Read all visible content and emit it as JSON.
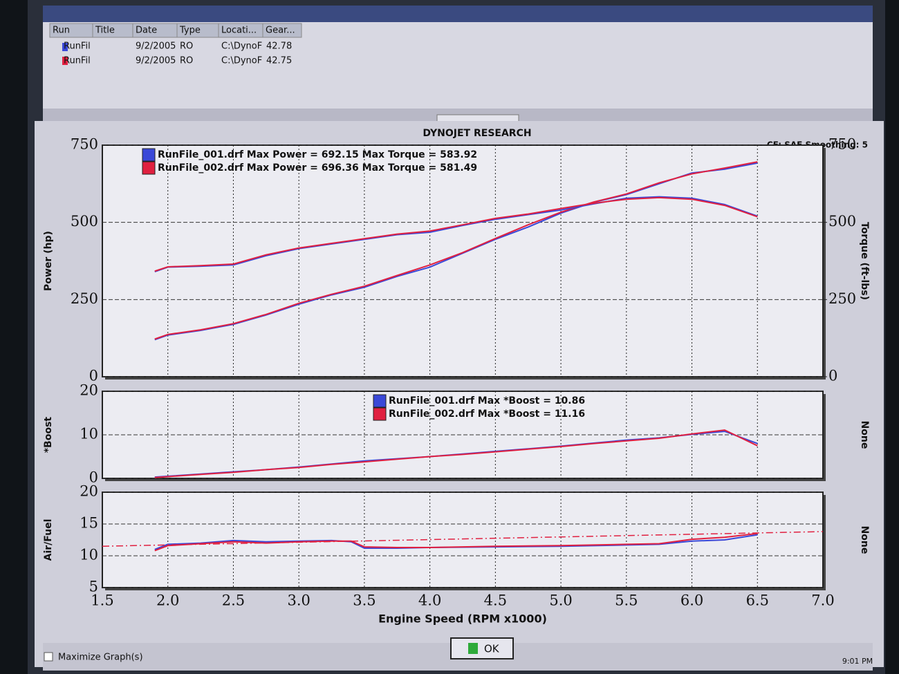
{
  "window": {
    "columns": [
      "Run",
      "Title",
      "Date",
      "Type",
      "Locati...",
      "Gear..."
    ],
    "rows": [
      [
        "RunFil",
        "9/2/2005",
        "RO",
        "C:\\DynoF",
        "42.78"
      ],
      [
        "RunFil",
        "9/2/2005",
        "RO",
        "C:\\DynoF",
        "42.75"
      ]
    ],
    "header": "DYNOJET RESEARCH",
    "settings": "CF: SAE  Smoothing: 5",
    "checkbox": "Maximize Graph(s)",
    "button": "OK",
    "clock": "9:01 PM"
  },
  "chart_data": [
    {
      "type": "line",
      "ylabel": "Power (hp)",
      "y2label": "Torque (ft-lbs)",
      "xlim": [
        1.5,
        7.0
      ],
      "xticks": [
        1.5,
        2,
        2.5,
        3,
        3.5,
        4,
        4.5,
        5,
        5.5,
        6,
        6.5,
        7
      ],
      "ylim": [
        0,
        750
      ],
      "yticks": [
        0,
        250,
        500,
        750
      ],
      "y2lim": [
        0,
        750
      ],
      "y2ticks": [
        0,
        250,
        500,
        750
      ],
      "grid": true,
      "x": [
        1.9,
        2.0,
        2.25,
        2.5,
        2.75,
        3.0,
        3.25,
        3.5,
        3.75,
        4.0,
        4.25,
        4.5,
        4.75,
        5.0,
        5.25,
        5.5,
        5.75,
        6.0,
        6.25,
        6.5
      ],
      "series": [
        {
          "name": "RunFile_001.drf Max Power = 692.15 Max Torque = 583.92",
          "color": "#3a48d8",
          "values": [
            120,
            135,
            150,
            170,
            200,
            235,
            265,
            290,
            325,
            355,
            400,
            445,
            485,
            530,
            565,
            590,
            625,
            660,
            672,
            692
          ]
        },
        {
          "name": "RunFile_002.drf Max Power = 696.36 Max Torque = 581.49",
          "color": "#e02040",
          "values": [
            122,
            137,
            152,
            172,
            202,
            238,
            267,
            293,
            328,
            362,
            402,
            448,
            492,
            533,
            566,
            592,
            628,
            657,
            676,
            696
          ]
        },
        {
          "color": "#3a48d8",
          "axis": "y2",
          "values": [
            340,
            355,
            358,
            362,
            392,
            415,
            430,
            445,
            460,
            468,
            490,
            510,
            525,
            540,
            560,
            578,
            583,
            578,
            558,
            520
          ]
        },
        {
          "color": "#e02040",
          "axis": "y2",
          "values": [
            342,
            356,
            360,
            365,
            395,
            417,
            432,
            447,
            462,
            472,
            492,
            513,
            527,
            545,
            562,
            575,
            580,
            575,
            555,
            518
          ]
        }
      ]
    },
    {
      "type": "line",
      "ylabel": "*Boost",
      "y2label": "None",
      "xlim": [
        1.5,
        7.0
      ],
      "xticks": [
        1.5,
        2,
        2.5,
        3,
        3.5,
        4,
        4.5,
        5,
        5.5,
        6,
        6.5,
        7
      ],
      "ylim": [
        0,
        20
      ],
      "yticks": [
        0,
        10,
        20
      ],
      "grid": true,
      "x": [
        1.9,
        2.0,
        2.25,
        2.5,
        2.75,
        3.0,
        3.25,
        3.5,
        3.75,
        4.0,
        4.25,
        4.5,
        4.75,
        5.0,
        5.25,
        5.5,
        5.75,
        6.0,
        6.25,
        6.5
      ],
      "series": [
        {
          "name": "RunFile_001.drf Max *Boost = 10.86",
          "color": "#3a48d8",
          "values": [
            0.3,
            0.5,
            1.0,
            1.5,
            2.0,
            2.6,
            3.3,
            4.0,
            4.5,
            5.0,
            5.6,
            6.2,
            6.8,
            7.4,
            8.1,
            8.8,
            9.3,
            10.1,
            10.8,
            8.0
          ]
        },
        {
          "name": "RunFile_002.drf Max *Boost = 11.16",
          "color": "#e02040",
          "values": [
            0.2,
            0.4,
            0.9,
            1.4,
            2.0,
            2.5,
            3.2,
            3.8,
            4.4,
            5.0,
            5.5,
            6.1,
            6.7,
            7.3,
            8.0,
            8.6,
            9.2,
            10.2,
            11.1,
            7.5
          ]
        }
      ]
    },
    {
      "type": "line",
      "ylabel": "Air/Fuel",
      "y2label": "None",
      "xlabel": "Engine Speed (RPM x1000)",
      "xlim": [
        1.5,
        7.0
      ],
      "xticks": [
        1.5,
        {
          "value": 2,
          "label": "2.0"
        },
        2.5,
        {
          "value": 3,
          "label": "3.0"
        },
        3.5,
        {
          "value": 4,
          "label": "4.0"
        },
        4.5,
        {
          "value": 5,
          "label": "5.0"
        },
        5.5,
        {
          "value": 6,
          "label": "6.0"
        },
        6.5,
        {
          "value": 7,
          "label": "7.0"
        }
      ],
      "ylim": [
        5,
        20
      ],
      "yticks": [
        5,
        10,
        15,
        20
      ],
      "grid": true,
      "x": [
        1.9,
        2.0,
        2.25,
        2.5,
        2.75,
        3.0,
        3.25,
        3.4,
        3.5,
        3.75,
        4.0,
        4.5,
        5.0,
        5.5,
        5.75,
        6.0,
        6.25,
        6.5
      ],
      "series": [
        {
          "color": "#3a48d8",
          "values": [
            11.0,
            11.8,
            12.0,
            12.4,
            12.2,
            12.3,
            12.4,
            12.2,
            11.2,
            11.2,
            11.3,
            11.4,
            11.5,
            11.7,
            11.8,
            12.3,
            12.5,
            13.3
          ]
        },
        {
          "color": "#e02040",
          "values": [
            10.8,
            11.6,
            11.9,
            12.2,
            12.0,
            12.2,
            12.3,
            12.3,
            11.4,
            11.3,
            11.3,
            11.5,
            11.6,
            11.8,
            11.9,
            12.6,
            12.9,
            13.5
          ]
        },
        {
          "color": "#e02040",
          "dashed": true,
          "x": [
            1.5,
            7.0
          ],
          "values": [
            11.5,
            13.8
          ]
        }
      ]
    }
  ]
}
